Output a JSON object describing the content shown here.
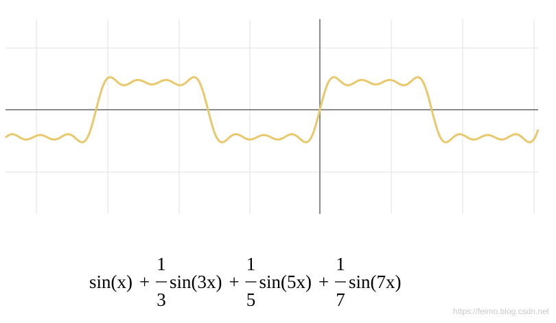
{
  "formula": {
    "terms": [
      {
        "text": "sin(x)"
      },
      {
        "operator": "+",
        "numerator": "1",
        "denominator": "3",
        "text": "sin(3x)"
      },
      {
        "operator": "+",
        "numerator": "1",
        "denominator": "5",
        "text": "sin(5x)"
      },
      {
        "operator": "+",
        "numerator": "1",
        "denominator": "7",
        "text": "sin(7x)"
      }
    ]
  },
  "watermark": "https://feimo.blog.csdn.net"
}
